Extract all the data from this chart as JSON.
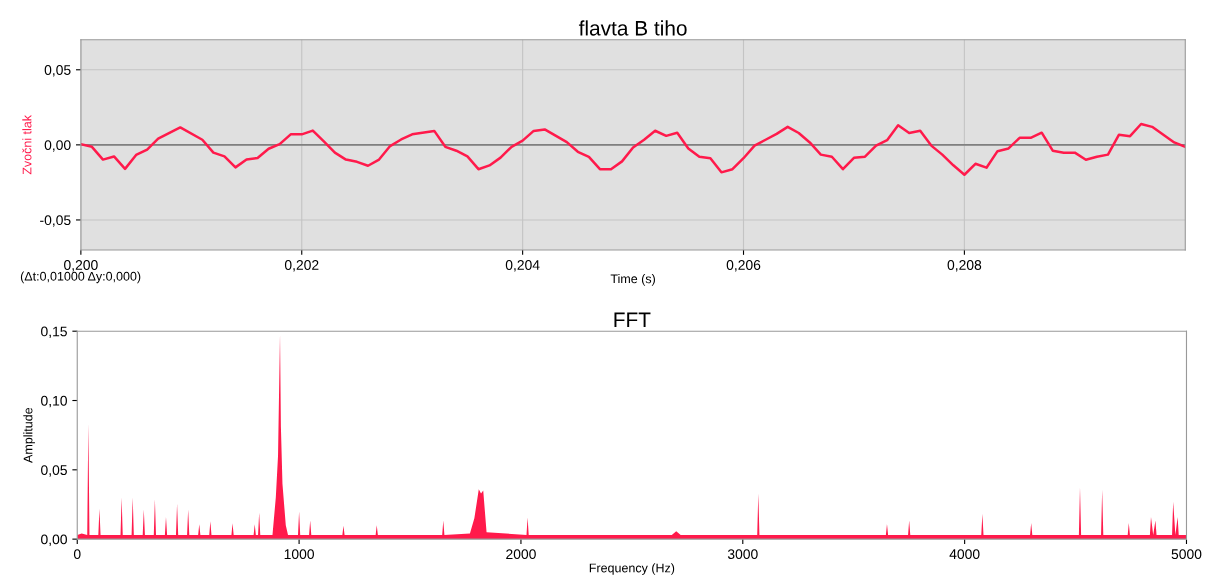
{
  "chart_data": [
    {
      "type": "line",
      "title": "flavta B tiho",
      "xlabel": "Time (s)",
      "ylabel": "Zvočni tlak",
      "x": [
        0.2,
        0.2001,
        0.2002,
        0.2003,
        0.2004,
        0.2005,
        0.2006,
        0.2007,
        0.2009,
        0.2011,
        0.2012,
        0.2013,
        0.2014,
        0.2015,
        0.2016,
        0.2017,
        0.2018,
        0.2019,
        0.202,
        0.2021,
        0.2022,
        0.2023,
        0.2024,
        0.2025,
        0.2026,
        0.2027,
        0.2028,
        0.2029,
        0.203,
        0.2032,
        0.2033,
        0.2034,
        0.2035,
        0.2036,
        0.2037,
        0.2038,
        0.2039,
        0.204,
        0.2041,
        0.2042,
        0.2044,
        0.2045,
        0.2046,
        0.2047,
        0.2048,
        0.2049,
        0.205,
        0.2051,
        0.2052,
        0.2053,
        0.2054,
        0.2055,
        0.2056,
        0.2057,
        0.2058,
        0.2059,
        0.206,
        0.2061,
        0.2062,
        0.2063,
        0.2064,
        0.2065,
        0.2066,
        0.2067,
        0.2068,
        0.2069,
        0.207,
        0.2071,
        0.2072,
        0.2073,
        0.2074,
        0.2075,
        0.2076,
        0.2077,
        0.2078,
        0.2079,
        0.208,
        0.2081,
        0.2082,
        0.2083,
        0.2084,
        0.2085,
        0.2086,
        0.2087,
        0.2088,
        0.2089,
        0.209,
        0.2091,
        0.2092,
        0.2093,
        0.2094,
        0.2095,
        0.2096,
        0.2097,
        0.2099,
        0.21
      ],
      "series": [
        {
          "color": "#ff1a4b",
          "values": [
            0.0005,
            -0.0013,
            -0.0098,
            -0.0077,
            -0.016,
            -0.0067,
            -0.0031,
            0.0041,
            0.0116,
            0.0034,
            -0.0052,
            -0.0077,
            -0.015,
            -0.0098,
            -0.0088,
            -0.0026,
            0.0005,
            0.007,
            0.007,
            0.0095,
            0.0023,
            -0.0052,
            -0.0098,
            -0.0113,
            -0.0139,
            -0.0098,
            -0.0008,
            0.0036,
            0.007,
            0.0093,
            -0.0013,
            -0.0039,
            -0.0077,
            -0.0162,
            -0.0137,
            -0.0085,
            -0.0013,
            0.0028,
            0.0093,
            0.0103,
            0.0018,
            -0.0046,
            -0.008,
            -0.0162,
            -0.0162,
            -0.011,
            -0.0018,
            0.0034,
            0.0094,
            0.006,
            0.0081,
            -0.0024,
            -0.0079,
            -0.0089,
            -0.0183,
            -0.0162,
            -0.0089,
            -0.0005,
            0.0034,
            0.0073,
            0.012,
            0.0079,
            0.0016,
            -0.0065,
            -0.0079,
            -0.0162,
            -0.0086,
            -0.0079,
            -0.0005,
            0.0031,
            0.0131,
            0.0079,
            0.0094,
            -0.0005,
            -0.0065,
            -0.0136,
            -0.0199,
            -0.0126,
            -0.0152,
            -0.0042,
            -0.0024,
            0.0047,
            0.0047,
            0.0081,
            -0.0039,
            -0.0052,
            -0.0052,
            -0.0099,
            -0.0079,
            -0.0065,
            0.0068,
            0.0058,
            0.0139,
            0.012,
            0.0016,
            -0.0013
          ]
        }
      ],
      "xlim": [
        0.2,
        0.21
      ],
      "xticks": [
        {
          "value": 0.2,
          "label": "0,200"
        },
        {
          "value": 0.202,
          "label": "0,202"
        },
        {
          "value": 0.204,
          "label": "0,204"
        },
        {
          "value": 0.206,
          "label": "0,206"
        },
        {
          "value": 0.208,
          "label": "0,208"
        }
      ],
      "ylim": [
        -0.07,
        0.07
      ],
      "yticks": [
        {
          "value": -0.05,
          "label": "-0,05"
        },
        {
          "value": 0,
          "label": "0,00"
        },
        {
          "value": 0.05,
          "label": "0,05"
        }
      ],
      "ref_lines": [
        {
          "axis": "y",
          "value": 0,
          "color": "#808080"
        }
      ],
      "grid": true,
      "annotations": [
        "(Δt:0,01000 Δy:0,000)"
      ]
    },
    {
      "type": "area",
      "title": "FFT",
      "xlabel": "Frequency (Hz)",
      "ylabel": "Amplitude",
      "x": [
        0,
        20,
        45,
        50,
        55,
        95,
        100,
        105,
        195,
        200,
        205,
        245,
        250,
        255,
        295,
        300,
        305,
        345,
        350,
        355,
        395,
        400,
        405,
        445,
        450,
        455,
        495,
        500,
        505,
        545,
        550,
        555,
        595,
        600,
        605,
        695,
        700,
        705,
        795,
        800,
        805,
        815,
        820,
        825,
        880,
        895,
        905,
        914,
        918,
        925,
        940,
        950,
        995,
        1000,
        1005,
        1045,
        1050,
        1055,
        1195,
        1200,
        1205,
        1345,
        1350,
        1355,
        1645,
        1650,
        1655,
        1770,
        1790,
        1810,
        1820,
        1830,
        1845,
        2025,
        2030,
        2035,
        2680,
        2700,
        2720,
        3065,
        3070,
        3075,
        3645,
        3650,
        3655,
        3745,
        3750,
        3755,
        4075,
        4080,
        4085,
        4295,
        4300,
        4305,
        4515,
        4520,
        4525,
        4615,
        4620,
        4625,
        4735,
        4740,
        4745,
        4835,
        4840,
        4850,
        4860,
        4865,
        4935,
        4940,
        4950,
        4960,
        4965,
        5000
      ],
      "series": [
        {
          "color": "#ff1a4b",
          "values": [
            0.003,
            0.004,
            0.003,
            0.0834,
            0.003,
            0.003,
            0.022,
            0.003,
            0.003,
            0.03,
            0.003,
            0.003,
            0.03,
            0.003,
            0.003,
            0.0214,
            0.003,
            0.003,
            0.0288,
            0.003,
            0.003,
            0.016,
            0.003,
            0.003,
            0.0255,
            0.003,
            0.003,
            0.0214,
            0.003,
            0.003,
            0.0107,
            0.003,
            0.003,
            0.0129,
            0.003,
            0.003,
            0.0115,
            0.003,
            0.003,
            0.0107,
            0.003,
            0.003,
            0.019,
            0.003,
            0.003,
            0.03,
            0.06,
            0.148,
            0.081,
            0.04,
            0.01,
            0.003,
            0.003,
            0.02,
            0.003,
            0.003,
            0.0134,
            0.003,
            0.003,
            0.0096,
            0.003,
            0.003,
            0.01,
            0.003,
            0.003,
            0.0134,
            0.003,
            0.004,
            0.015,
            0.036,
            0.033,
            0.035,
            0.005,
            0.003,
            0.0156,
            0.003,
            0.003,
            0.0056,
            0.003,
            0.003,
            0.033,
            0.003,
            0.003,
            0.011,
            0.003,
            0.003,
            0.0134,
            0.003,
            0.003,
            0.0184,
            0.003,
            0.003,
            0.0117,
            0.003,
            0.003,
            0.0374,
            0.003,
            0.003,
            0.0357,
            0.003,
            0.003,
            0.0117,
            0.003,
            0.003,
            0.0159,
            0.003,
            0.0134,
            0.003,
            0.003,
            0.027,
            0.003,
            0.016,
            0.003,
            0.003
          ]
        }
      ],
      "xlim": [
        0,
        5000
      ],
      "xticks": [
        0,
        1000,
        2000,
        3000,
        4000,
        5000
      ],
      "ylim": [
        0,
        0.15
      ],
      "yticks": [
        {
          "value": 0,
          "label": "0,00"
        },
        {
          "value": 0.05,
          "label": "0,05"
        },
        {
          "value": 0.1,
          "label": "0,10"
        },
        {
          "value": 0.15,
          "label": "0,15"
        }
      ]
    }
  ]
}
